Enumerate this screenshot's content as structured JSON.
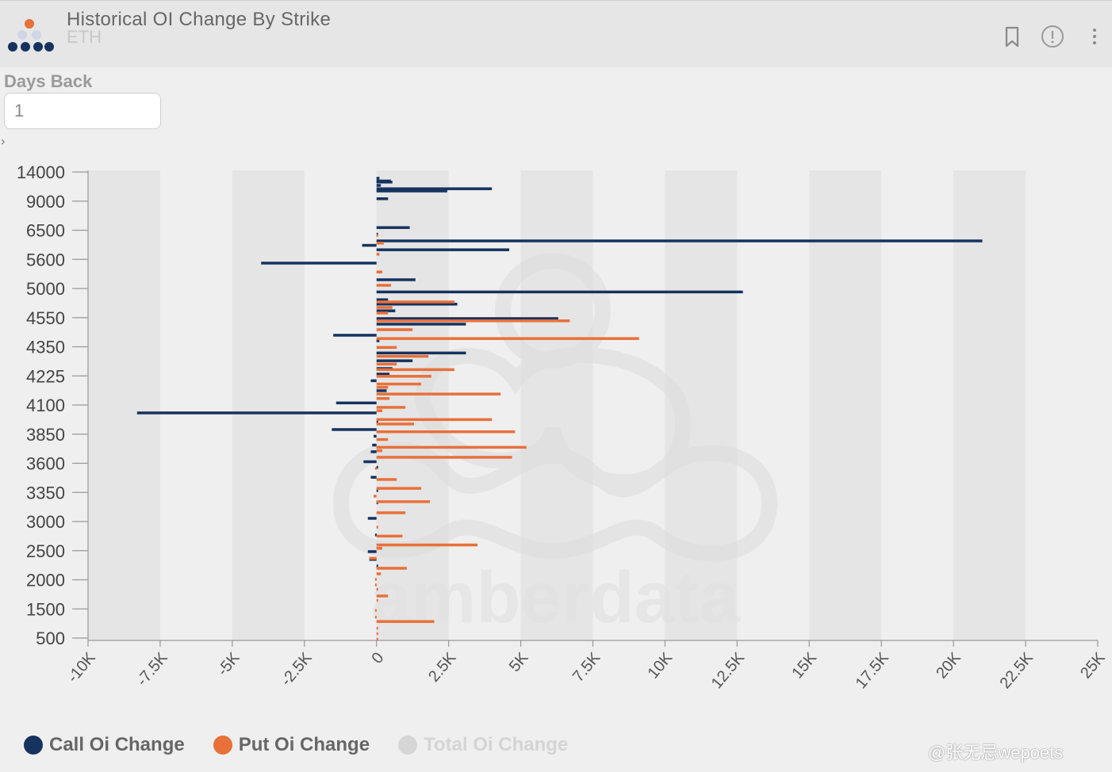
{
  "header": {
    "title": "Historical OI Change By Strike",
    "subtitle": "ETH"
  },
  "filters": {
    "days_back_label": "Days Back",
    "days_back_value": "1"
  },
  "icons": [
    "amberdata-logo-icon",
    "bookmark-icon",
    "info-icon",
    "more-vert-icon",
    "chevron-right-icon"
  ],
  "colors": {
    "call": "#16335f",
    "put": "#e8703a",
    "total": "#d6d6d6",
    "axis": "#999999"
  },
  "watermark": "amberdata",
  "credit": "@张无忌wepoets",
  "chart_data": {
    "type": "bar",
    "orientation": "horizontal",
    "x_ticks": [
      "-10K",
      "-7.5K",
      "-5K",
      "-2.5K",
      "0",
      "2.5K",
      "5K",
      "7.5K",
      "10K",
      "12.5K",
      "15K",
      "17.5K",
      "20K",
      "22.5K",
      "25K"
    ],
    "xlim": [
      -10000,
      25000
    ],
    "y_ticks": [
      "14000",
      "9000",
      "6500",
      "5600",
      "5000",
      "4550",
      "4350",
      "4225",
      "4100",
      "3850",
      "3600",
      "3350",
      "3000",
      "2500",
      "2000",
      "1500",
      "500"
    ],
    "legend": {
      "placement": "bottom-left",
      "items": [
        {
          "label": "Call Oi Change",
          "color": "#16335f",
          "enabled": true
        },
        {
          "label": "Put Oi Change",
          "color": "#e8703a",
          "enabled": true
        },
        {
          "label": "Total Oi Change",
          "color": "#d6d6d6",
          "enabled": false
        }
      ]
    },
    "grid": "alternating vertical bands",
    "series": [
      {
        "name": "Call Oi Change",
        "values": [
          [
            0.3,
            100
          ],
          [
            0.8,
            500
          ],
          [
            1.0,
            550
          ],
          [
            1.6,
            150
          ],
          [
            2.2,
            4000
          ],
          [
            2.6,
            2450
          ],
          [
            4.0,
            400
          ],
          [
            9.2,
            1150
          ],
          [
            10.4,
            0
          ],
          [
            11.6,
            21000
          ],
          [
            12.4,
            -500
          ],
          [
            13.2,
            4600
          ],
          [
            15.6,
            -4000
          ],
          [
            18.6,
            1350
          ],
          [
            20.8,
            12700
          ],
          [
            22.2,
            400
          ],
          [
            23.0,
            2800
          ],
          [
            24.2,
            650
          ],
          [
            25.6,
            6300
          ],
          [
            26.6,
            3100
          ],
          [
            28.6,
            -1500
          ],
          [
            29.6,
            100
          ],
          [
            31.8,
            3100
          ],
          [
            33.2,
            1250
          ],
          [
            34.6,
            550
          ],
          [
            35.6,
            450
          ],
          [
            36.8,
            -200
          ],
          [
            38.6,
            350
          ],
          [
            40.8,
            -1400
          ],
          [
            42.6,
            -8300
          ],
          [
            44.2,
            0
          ],
          [
            45.6,
            -1550
          ],
          [
            46.8,
            -100
          ],
          [
            48.4,
            -150
          ],
          [
            49.6,
            -200
          ],
          [
            51.4,
            -450
          ],
          [
            52.4,
            0
          ],
          [
            54.2,
            -200
          ],
          [
            56.6,
            0
          ],
          [
            58.8,
            0
          ],
          [
            61.6,
            -300
          ],
          [
            64.6,
            -50
          ],
          [
            67.6,
            -300
          ],
          [
            69.0,
            -250
          ],
          [
            70.2,
            0
          ]
        ]
      },
      {
        "name": "Put Oi Change",
        "values": [
          [
            10.6,
            50
          ],
          [
            12.0,
            250
          ],
          [
            14.0,
            100
          ],
          [
            17.2,
            200
          ],
          [
            19.6,
            500
          ],
          [
            22.6,
            2700
          ],
          [
            23.6,
            550
          ],
          [
            24.6,
            400
          ],
          [
            26.0,
            6700
          ],
          [
            27.6,
            1250
          ],
          [
            29.2,
            9100
          ],
          [
            30.8,
            700
          ],
          [
            32.4,
            1800
          ],
          [
            33.8,
            700
          ],
          [
            34.8,
            2700
          ],
          [
            36.0,
            1900
          ],
          [
            37.4,
            1550
          ],
          [
            38.0,
            400
          ],
          [
            39.2,
            4300
          ],
          [
            40.0,
            450
          ],
          [
            41.6,
            1000
          ],
          [
            42.2,
            200
          ],
          [
            43.8,
            4000
          ],
          [
            44.6,
            1300
          ],
          [
            46.0,
            4800
          ],
          [
            47.4,
            400
          ],
          [
            48.8,
            5200
          ],
          [
            49.4,
            200
          ],
          [
            50.6,
            4700
          ],
          [
            52.6,
            -50
          ],
          [
            54.6,
            700
          ],
          [
            56.2,
            1550
          ],
          [
            57.6,
            -100
          ],
          [
            58.6,
            1850
          ],
          [
            60.6,
            1000
          ],
          [
            63.2,
            50
          ],
          [
            64.8,
            900
          ],
          [
            66.4,
            3500
          ],
          [
            67.0,
            200
          ],
          [
            68.8,
            -250
          ],
          [
            70.6,
            1050
          ],
          [
            71.6,
            150
          ],
          [
            72.6,
            -50
          ],
          [
            73.6,
            -50
          ],
          [
            74.4,
            50
          ],
          [
            75.6,
            400
          ],
          [
            76.4,
            50
          ],
          [
            78.2,
            -50
          ],
          [
            79.4,
            -50
          ],
          [
            80.2,
            2000
          ],
          [
            81.4,
            50
          ],
          [
            82.4,
            50
          ],
          [
            83.4,
            50
          ]
        ]
      }
    ]
  }
}
